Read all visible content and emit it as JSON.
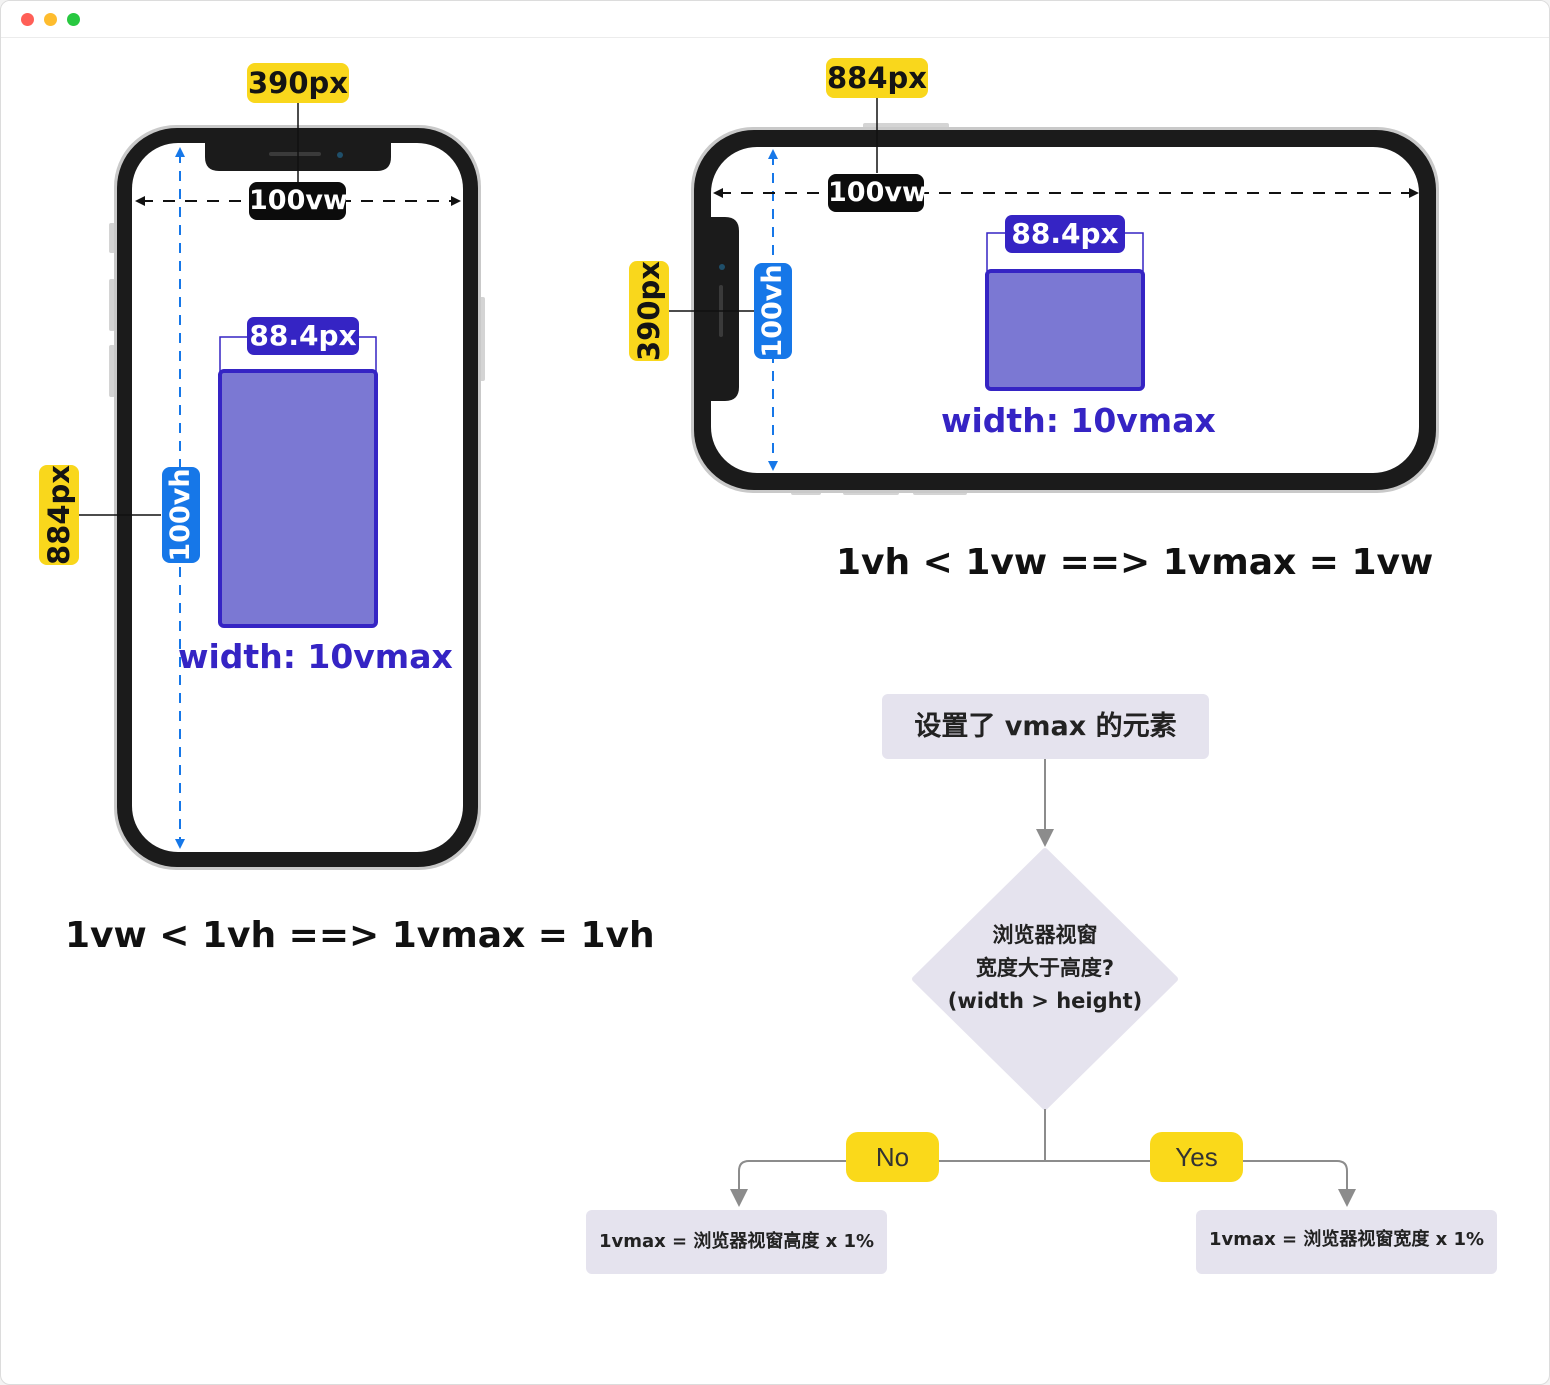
{
  "window": {
    "dots": [
      "#ff5f57",
      "#febc2e",
      "#28c840"
    ]
  },
  "portrait": {
    "width_px": "390px",
    "width_vw": "100vw",
    "height_px": "884px",
    "height_vh": "100vh",
    "box_px": "88.4px",
    "box_label": "width: 10vmax",
    "formula": "1vw < 1vh ==> 1vmax = 1vh"
  },
  "landscape": {
    "width_px": "884px",
    "width_vw": "100vw",
    "height_px": "390px",
    "height_vh": "100vh",
    "box_px": "88.4px",
    "box_label": "width: 10vmax",
    "formula": "1vh < 1vw ==> 1vmax = 1vw"
  },
  "flowchart": {
    "start": "设置了 vmax 的元素",
    "decision_line1": "浏览器视窗",
    "decision_line2": "宽度大于高度?",
    "decision_line3": "(width > height)",
    "no_label": "No",
    "yes_label": "Yes",
    "no_result": "1vmax = 浏览器视窗高度  x  1%",
    "yes_result": "1vmax = 浏览器视窗宽度  x  1%"
  },
  "colors": {
    "yellow": "#f9d71c",
    "purple": "#3524c4",
    "box_fill": "#7b78d3",
    "blue": "#1677e8",
    "flow_fill": "#e5e3ee"
  }
}
